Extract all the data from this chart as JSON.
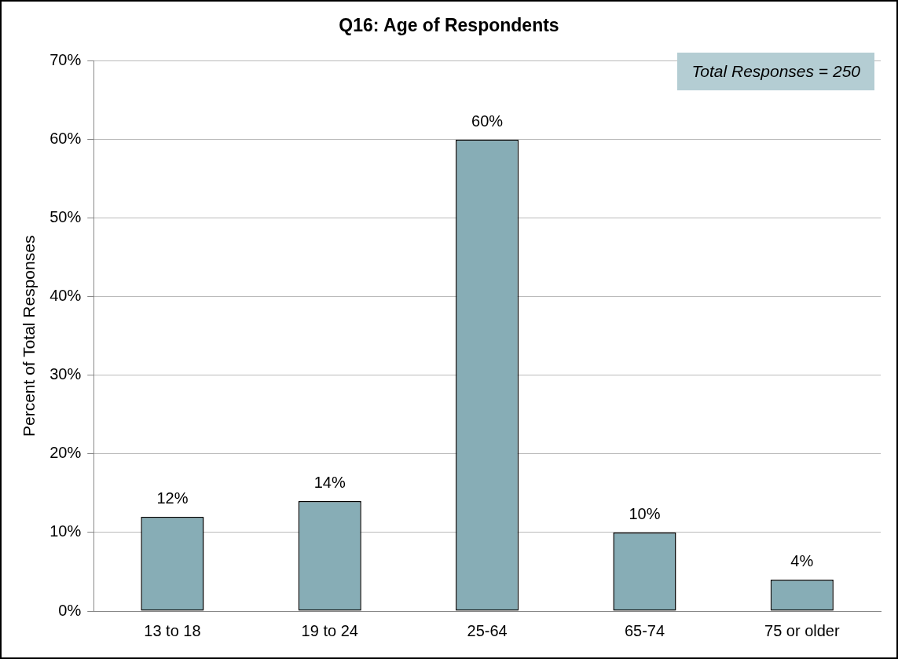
{
  "chart_data": {
    "type": "bar",
    "title": "Q16: Age of Respondents",
    "ylabel": "Percent of Total Responses",
    "categories": [
      "13 to 18",
      "19 to 24",
      "25-64",
      "65-74",
      "75 or older"
    ],
    "values": [
      12,
      14,
      60,
      10,
      4
    ],
    "value_labels": [
      "12%",
      "14%",
      "60%",
      "10%",
      "4%"
    ],
    "color": "#87adb6",
    "ylim": [
      0,
      70
    ],
    "yticks": [
      {
        "value": 0,
        "label": "0%"
      },
      {
        "value": 10,
        "label": "10%"
      },
      {
        "value": 20,
        "label": "20%"
      },
      {
        "value": 30,
        "label": "30%"
      },
      {
        "value": 40,
        "label": "40%"
      },
      {
        "value": 50,
        "label": "50%"
      },
      {
        "value": 60,
        "label": "60%"
      },
      {
        "value": 70,
        "label": "70%"
      }
    ],
    "grid": "y",
    "legend": false,
    "annotations": [
      "Total Responses = 250"
    ]
  }
}
